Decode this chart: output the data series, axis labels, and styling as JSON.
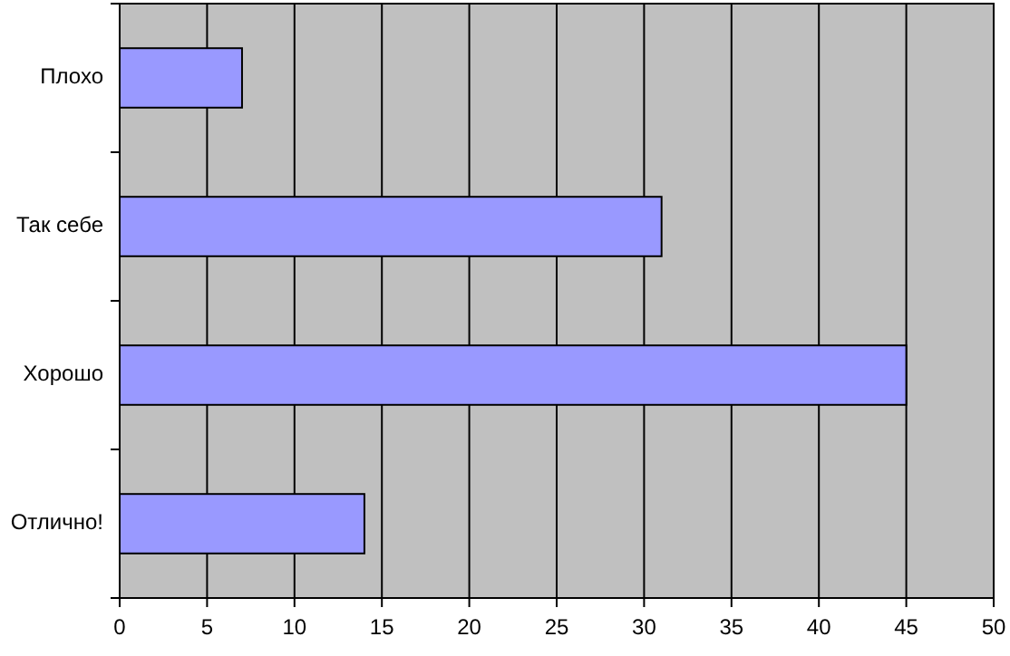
{
  "chart_data": {
    "type": "bar",
    "orientation": "horizontal",
    "categories": [
      "Плохо",
      "Так себе",
      "Хорошо",
      "Отлично!"
    ],
    "values": [
      7,
      31,
      45,
      14
    ],
    "color": "#9999ff",
    "xlim": [
      0,
      50
    ],
    "xticks": [
      0,
      5,
      10,
      15,
      20,
      25,
      30,
      35,
      40,
      45,
      50
    ],
    "grid": "x"
  }
}
